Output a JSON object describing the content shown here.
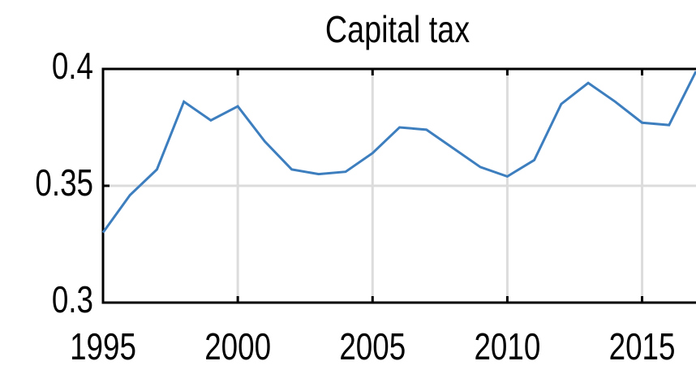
{
  "chart_data": {
    "type": "line",
    "title": "Capital tax",
    "x": [
      1995,
      1996,
      1997,
      1998,
      1999,
      2000,
      2001,
      2002,
      2003,
      2004,
      2005,
      2006,
      2007,
      2008,
      2009,
      2010,
      2011,
      2012,
      2013,
      2014,
      2015,
      2016,
      2017
    ],
    "series": [
      {
        "name": "Capital tax",
        "color": "#3d7ebf",
        "values": [
          0.33,
          0.346,
          0.357,
          0.386,
          0.378,
          0.384,
          0.369,
          0.357,
          0.355,
          0.356,
          0.364,
          0.375,
          0.374,
          0.366,
          0.358,
          0.354,
          0.361,
          0.385,
          0.394,
          0.386,
          0.377,
          0.376,
          0.399
        ]
      }
    ],
    "xlim": [
      1995,
      2017
    ],
    "xticks": [
      1995,
      2000,
      2005,
      2010,
      2015
    ],
    "ylim": [
      0.3,
      0.4
    ],
    "yticks": [
      0.3,
      0.35,
      0.4
    ],
    "grid": true
  }
}
